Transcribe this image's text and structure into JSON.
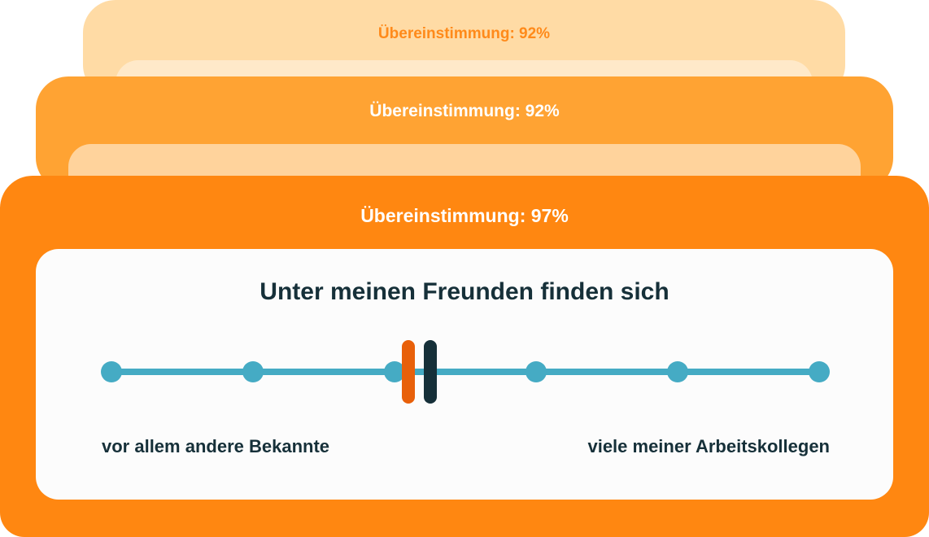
{
  "cards": [
    {
      "match_label": "Übereinstimmung: 92%"
    },
    {
      "match_label": "Übereinstimmung: 92%"
    },
    {
      "match_label": "Übereinstimmung: 97%"
    }
  ],
  "question": "Unter meinen Freunden finden sich",
  "scale": {
    "points": 6,
    "left_label": "vor allem andere Bekannte",
    "right_label": "viele meiner Arbeitskollegen",
    "marker_a_position": 0.42,
    "marker_b_position": 0.45,
    "marker_a_color": "#E8600A",
    "marker_b_color": "#163039",
    "track_color": "#45ABC4"
  },
  "colors": {
    "card_back": "#FFDBA5",
    "card_mid": "#FFA333",
    "card_front": "#FF8711",
    "text_dark": "#163039"
  }
}
